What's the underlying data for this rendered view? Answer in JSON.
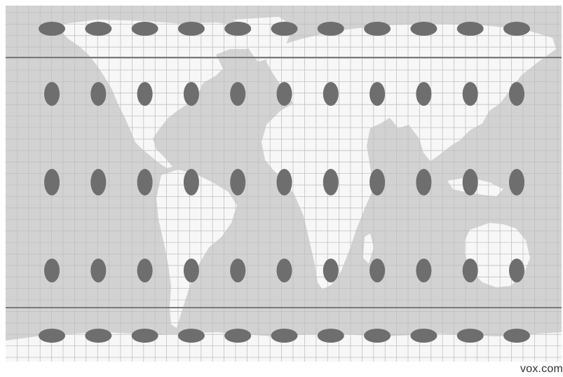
{
  "map": {
    "projection_style": "Tissot indicatrix",
    "colors": {
      "ocean": "#d2d2d2",
      "land": "#f7f7f7",
      "grid": "#c0c0c0",
      "reference_line": "#7a7a7a",
      "ellipse": "#6e6e6e"
    },
    "ellipse_rows": 5,
    "ellipse_cols": 11
  },
  "credit": "vox.com"
}
